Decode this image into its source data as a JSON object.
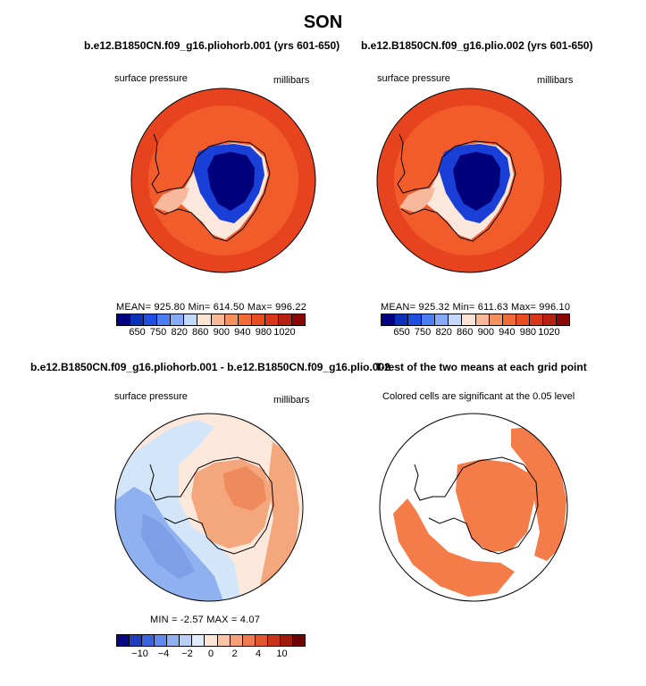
{
  "season": "SON",
  "colors": {
    "ocean_high": "#e8431f",
    "ocean_mid": "#f25c2a",
    "ice_deep": "#00007a",
    "ice_blue": "#1a3fd6",
    "diff_blue": "#8fb1ef",
    "diff_light": "#d3e5f8",
    "diff_peach": "#f8c7a8",
    "diff_orange": "#f08a5a",
    "sig_orange": "#f47c48"
  },
  "chart_data": [
    {
      "type": "heatmap",
      "title": "b.e12.B1850CN.f09_g16.pliohorb.001 (yrs 601-650)",
      "left_label": "surface pressure",
      "right_label": "millibars",
      "stats": "MEAN= 925.80   Min= 614.50   Max= 996.22",
      "mean": 925.8,
      "min": 614.5,
      "max": 996.22,
      "colorbar": {
        "colors": [
          "#000080",
          "#0a2fb8",
          "#1f4fe0",
          "#4a7df0",
          "#85aaf6",
          "#c4d8f9",
          "#fbe2d2",
          "#f8b896",
          "#f4915f",
          "#f06b35",
          "#e84d1f",
          "#d8351a",
          "#b82012",
          "#8a0505"
        ],
        "ticks": [
          "650",
          "750",
          "820",
          "860",
          "900",
          "940",
          "980",
          "1020"
        ]
      }
    },
    {
      "type": "heatmap",
      "title": "b.e12.B1850CN.f09_g16.plio.002 (yrs 601-650)",
      "left_label": "surface pressure",
      "right_label": "millibars",
      "stats": "MEAN= 925.32   Min= 611.63   Max= 996.10",
      "mean": 925.32,
      "min": 611.63,
      "max": 996.1,
      "colorbar": {
        "colors": [
          "#000080",
          "#0a2fb8",
          "#1f4fe0",
          "#4a7df0",
          "#85aaf6",
          "#c4d8f9",
          "#fbe2d2",
          "#f8b896",
          "#f4915f",
          "#f06b35",
          "#e84d1f",
          "#d8351a",
          "#b82012",
          "#8a0505"
        ],
        "ticks": [
          "650",
          "750",
          "820",
          "860",
          "900",
          "940",
          "980",
          "1020"
        ]
      }
    },
    {
      "type": "heatmap",
      "title": "b.e12.B1850CN.f09_g16.pliohorb.001 - b.e12.B1850CN.f09_g16.plio.002",
      "left_label": "surface pressure",
      "right_label": "millibars",
      "stats": "MIN =  -2.57  MAX =   4.07",
      "min": -2.57,
      "max": 4.07,
      "colorbar": {
        "colors": [
          "#0a0a80",
          "#1f3fc0",
          "#3a63e0",
          "#6088ee",
          "#8fb1f4",
          "#b8cff8",
          "#e0ecfb",
          "#fbe5d5",
          "#f8c4a6",
          "#f4a07a",
          "#ee7a4f",
          "#e2552e",
          "#c93419",
          "#a01a0c",
          "#6e0505"
        ],
        "ticks": [
          "−10",
          "−4",
          "−2",
          "0",
          "2",
          "4",
          "10"
        ]
      }
    },
    {
      "type": "heatmap",
      "title": "T-test of the two means at each grid point",
      "subtitle": "Colored cells are significant at the 0.05 level",
      "significance_level": 0.05
    }
  ]
}
